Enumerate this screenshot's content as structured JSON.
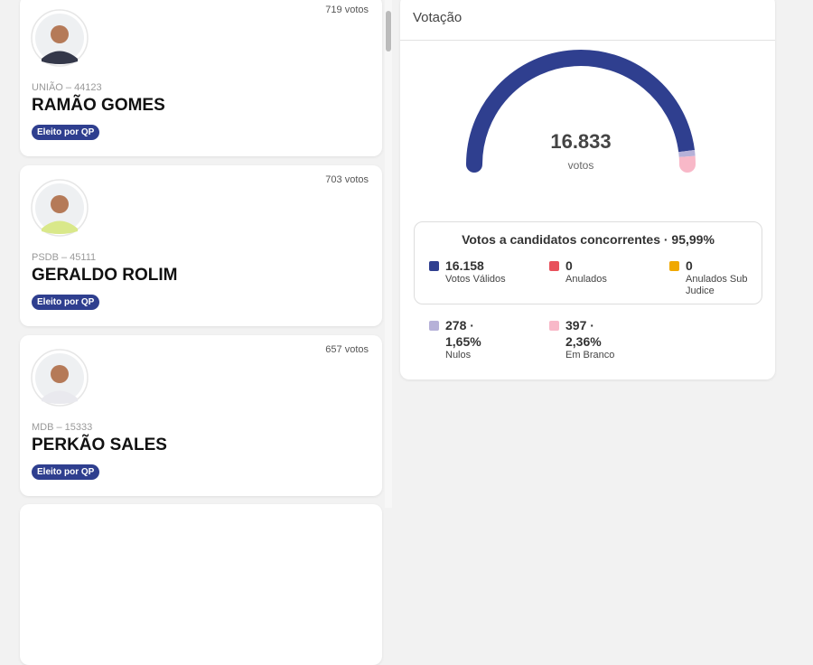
{
  "candidates": [
    {
      "votes": "719 votos",
      "party": "UNIÃO – 44123",
      "name": "RAMÃO GOMES",
      "badge": "Eleito por QP"
    },
    {
      "votes": "703 votos",
      "party": "PSDB – 45111",
      "name": "GERALDO ROLIM",
      "badge": "Eleito por QP"
    },
    {
      "votes": "657 votos",
      "party": "MDB – 15333",
      "name": "PERKÃO SALES",
      "badge": "Eleito por QP"
    }
  ],
  "panel": {
    "title": "Votação",
    "total": {
      "value": 16833,
      "label": "16.833"
    },
    "unit": "votos",
    "box_title": "Votos a candidatos concorrentes · 95,99%",
    "items": [
      {
        "value": 16158,
        "label": "16.158",
        "caption": "Votos Válidos",
        "color": "#2f3f8f"
      },
      {
        "value": 0,
        "label": "0",
        "caption": "Anulados",
        "color": "#e8505b"
      },
      {
        "value": 0,
        "label": "0",
        "caption": "Anulados Sub Judice",
        "color": "#f0a800"
      },
      {
        "value": 278,
        "label": "278 ·",
        "percent": "1,65%",
        "caption": "Nulos",
        "color": "#b6b1d8"
      },
      {
        "value": 397,
        "label": "397 ·",
        "percent": "2,36%",
        "caption": "Em Branco",
        "color": "#f8b8c8"
      }
    ]
  }
}
